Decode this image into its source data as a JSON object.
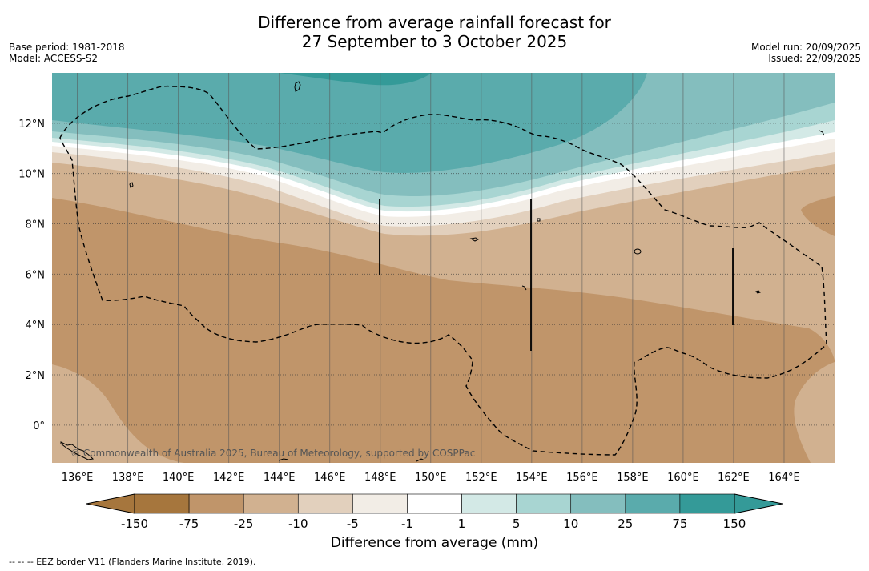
{
  "title": {
    "line1": "Difference from average rainfall forecast for",
    "line2": "27 September to 3 October 2025"
  },
  "meta": {
    "base_period": "Base period: 1981-2018",
    "model": "Model: ACCESS-S2",
    "model_run": "Model run: 20/09/2025",
    "issued": "Issued: 22/09/2025"
  },
  "map": {
    "region": "Western/Central Pacific",
    "lon_range": [
      135,
      166
    ],
    "lat_range": [
      -1.5,
      14
    ],
    "lon_ticks": [
      "136°E",
      "138°E",
      "140°E",
      "142°E",
      "144°E",
      "146°E",
      "148°E",
      "150°E",
      "152°E",
      "154°E",
      "156°E",
      "158°E",
      "160°E",
      "162°E",
      "164°E"
    ],
    "lat_ticks": [
      "12°N",
      "10°N",
      "8°N",
      "6°N",
      "4°N",
      "2°N",
      "0°"
    ],
    "copyright": "© Commonwealth of Australia 2025, Bureau of Meteorology, supported by COSPPac",
    "colors": {
      "dry_150": "#a6763d",
      "dry_75": "#c0956a",
      "dry_25": "#d1b190",
      "dry_10": "#e2d0bd",
      "dry_5": "#f2ede6",
      "neutral": "#ffffff",
      "wet_5": "#d3e9e6",
      "wet_10": "#a8d5d2",
      "wet_25": "#84bebe",
      "wet_75": "#5aabac",
      "wet_150": "#349a98"
    }
  },
  "colorbar": {
    "labels": [
      "-150",
      "-75",
      "-25",
      "-10",
      "-5",
      "-1",
      "1",
      "5",
      "10",
      "25",
      "75",
      "150"
    ],
    "title": "Difference from average (mm)"
  },
  "footnote": "--  --  -- EEZ border V11 (Flanders Marine Institute, 2019)."
}
